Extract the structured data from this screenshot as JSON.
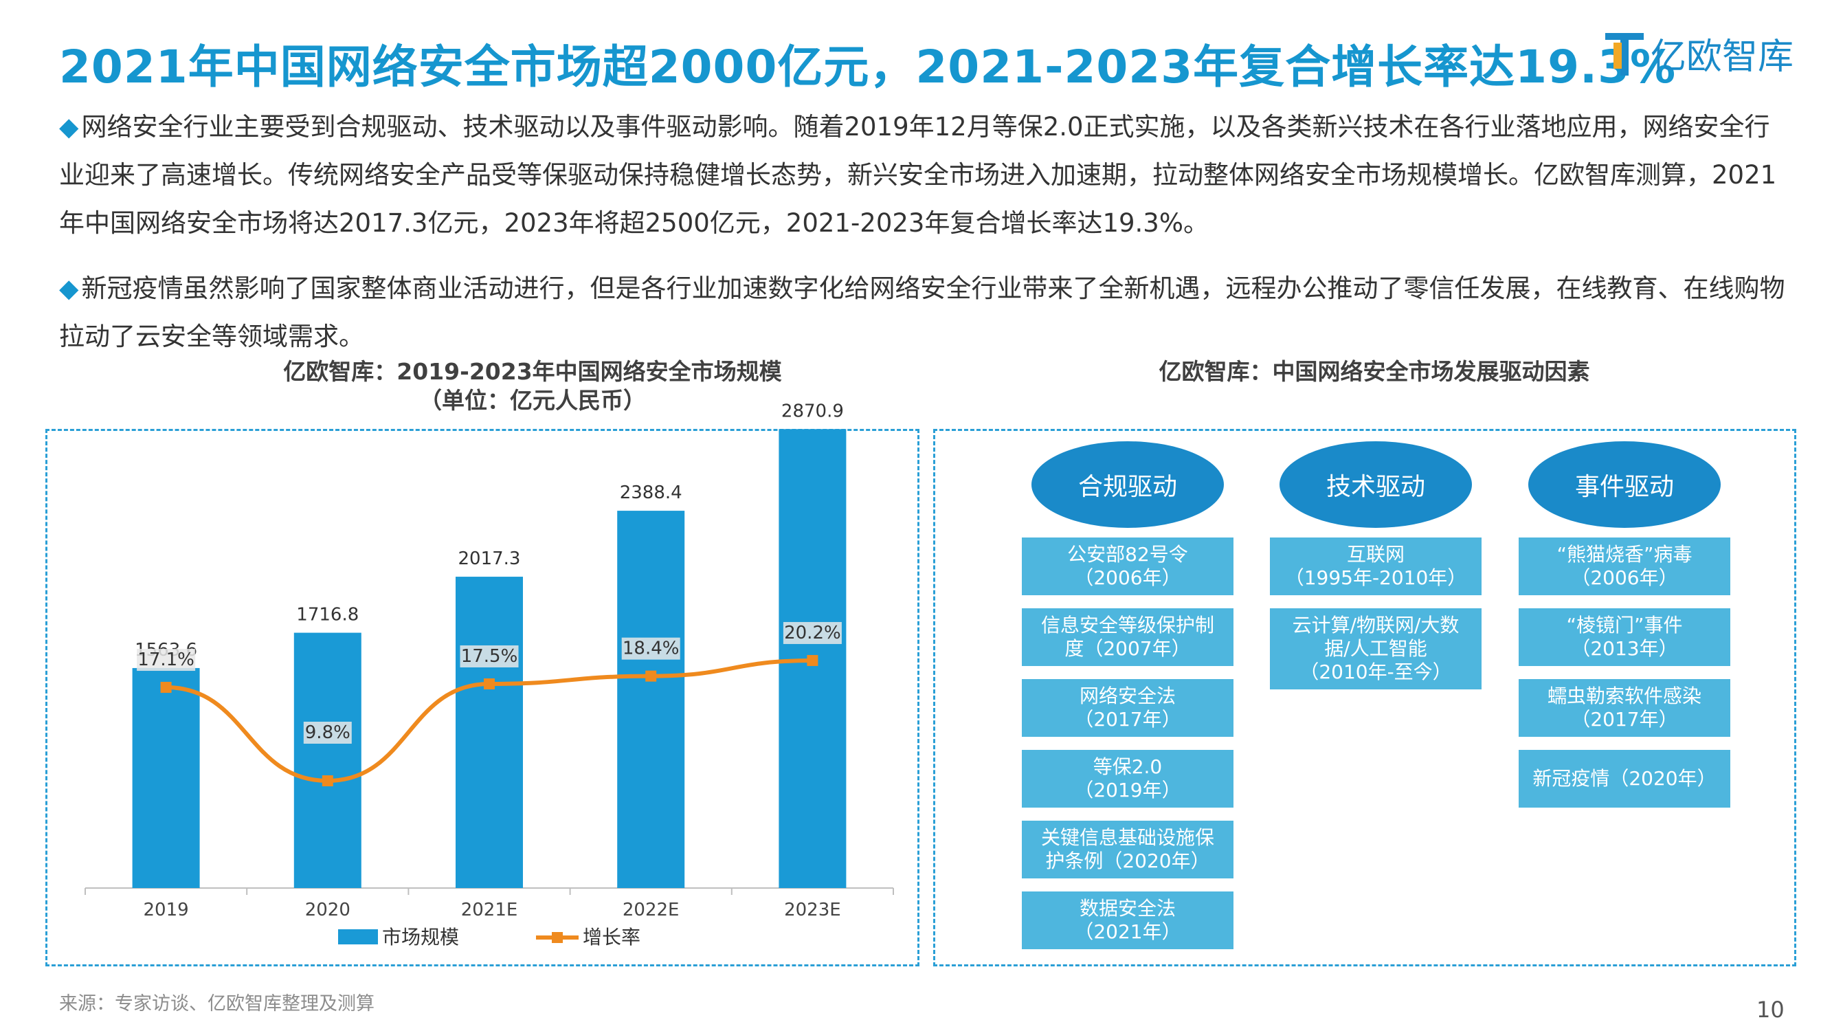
{
  "header": {
    "title": "2021年中国网络安全市场超2000亿元，2021-2023年复合增长率达19.3%",
    "logo_text": "亿欧智库",
    "accent_color": "#1696cf"
  },
  "paragraphs": [
    {
      "bullet": "◆",
      "text": "网络安全行业主要受到合规驱动、技术驱动以及事件驱动影响。随着2019年12月等保2.0正式实施，以及各类新兴技术在各行业落地应用，网络安全行业迎来了高速增长。传统网络安全产品受等保驱动保持稳健增长态势，新兴安全市场进入加速期，拉动整体网络安全市场规模增长。亿欧智库测算，2021年中国网络安全市场将达2017.3亿元，2023年将超2500亿元，2021-2023年复合增长率达19.3%。"
    },
    {
      "bullet": "◆",
      "text": "新冠疫情虽然影响了国家整体商业活动进行，但是各行业加速数字化给网络安全行业带来了全新机遇，远程办公推动了零信任发展，在线教育、在线购物拉动了云安全等领域需求。"
    }
  ],
  "left_title": {
    "line1": "亿欧智库：2019-2023年中国网络安全市场规模",
    "line2": "（单位：亿元人民币）"
  },
  "right_title": "亿欧智库：中国网络安全市场发展驱动因素",
  "chart_data": {
    "type": "bar",
    "categories": [
      "2019",
      "2020",
      "2021E",
      "2022E",
      "2023E"
    ],
    "series": [
      {
        "name": "市场规模",
        "kind": "bar",
        "values": [
          1563.6,
          1716.8,
          2017.3,
          2388.4,
          2870.9
        ],
        "labels": [
          "1563.6",
          "1716.8",
          "2017.3",
          "2388.4",
          "2870.9"
        ],
        "color": "#1a9ad6"
      },
      {
        "name": "增长率",
        "kind": "line",
        "values": [
          17.1,
          9.8,
          17.5,
          18.4,
          20.2
        ],
        "labels": [
          "17.1%",
          "9.8%",
          "17.5%",
          "18.4%",
          "20.2%"
        ],
        "color": "#ef8a1e"
      }
    ],
    "legend": "bottom",
    "grid": false
  },
  "drivers": {
    "columns": [
      {
        "title": "合规驱动",
        "items": [
          "公安部82号令\n（2006年）",
          "信息安全等级保护制\n度（2007年）",
          "网络安全法\n（2017年）",
          "等保2.0\n（2019年）",
          "关键信息基础设施保\n护条例（2020年）",
          "数据安全法\n（2021年）"
        ]
      },
      {
        "title": "技术驱动",
        "items": [
          "互联网\n（1995年-2010年）",
          "云计算/物联网/大数\n据/人工智能\n（2010年-至今）"
        ]
      },
      {
        "title": "事件驱动",
        "items": [
          "“熊猫烧香”病毒\n（2006年）",
          "“棱镜门”事件\n（2013年）",
          "蠕虫勒索软件感染\n（2017年）",
          "新冠疫情（2020年）"
        ]
      }
    ],
    "oval_color": "#1a8ac9",
    "box_color": "#4eb6de"
  },
  "footer": {
    "source": "来源：专家访谈、亿欧智库整理及测算",
    "page": "10"
  }
}
